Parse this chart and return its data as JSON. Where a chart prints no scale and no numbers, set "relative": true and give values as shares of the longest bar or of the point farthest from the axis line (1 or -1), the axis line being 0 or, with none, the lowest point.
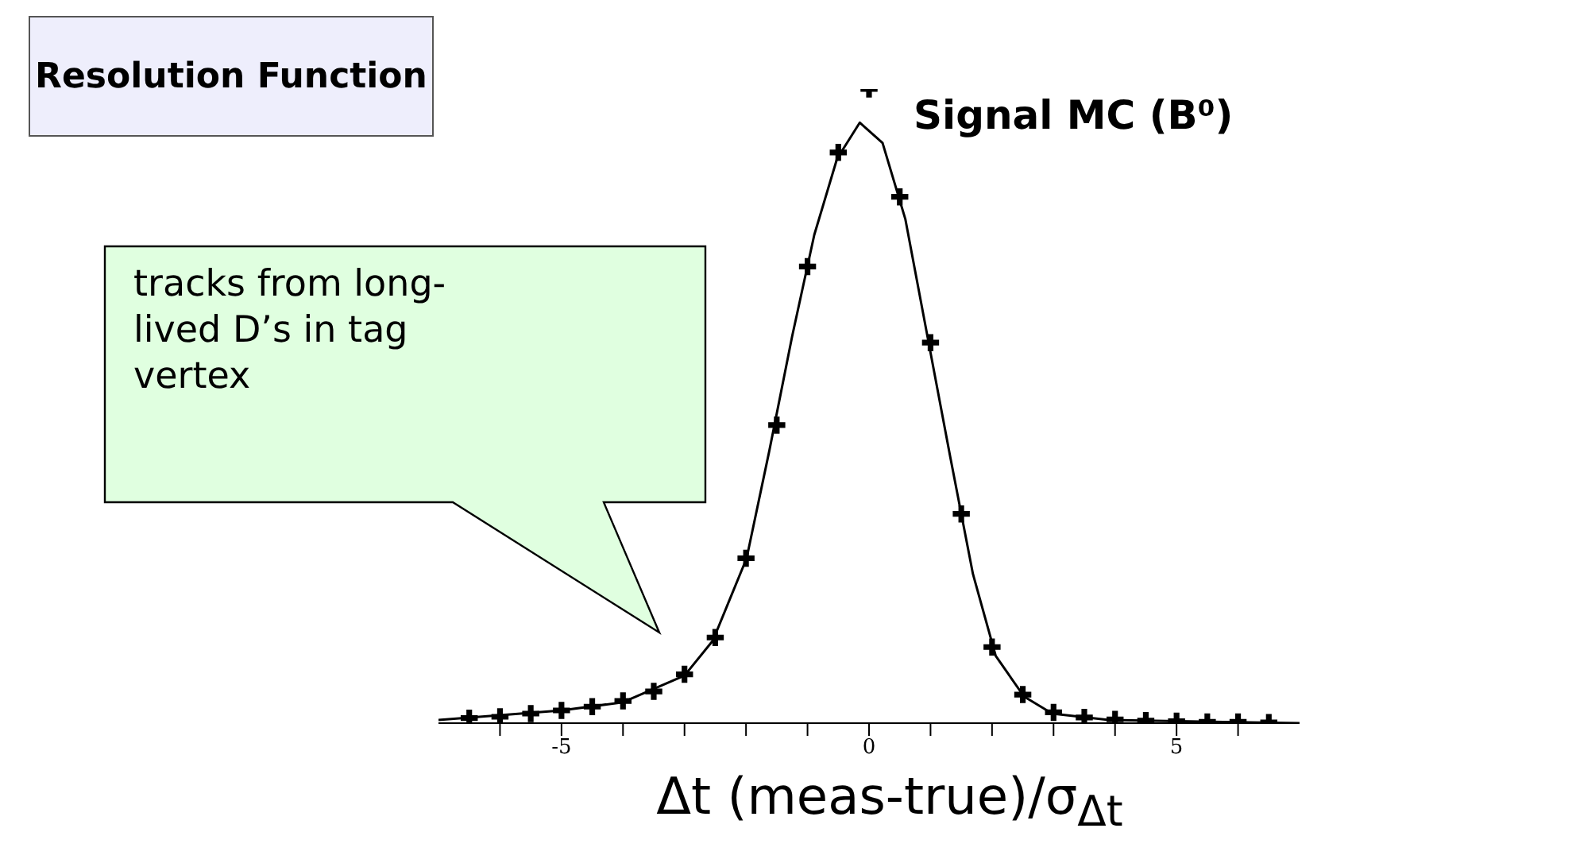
{
  "chart_data": {
    "type": "line",
    "title": "Resolution Function",
    "subtitle": "Signal MC (B⁰)",
    "xlabel": "Δt (meas-true)/σ$_{Δt}$",
    "relative": true,
    "xlim": [
      -7,
      7
    ],
    "xticks": [
      {
        "value": -6,
        "label": null
      },
      -5,
      {
        "value": -4,
        "label": null
      },
      {
        "value": -3,
        "label": null
      },
      {
        "value": -2,
        "label": null
      },
      {
        "value": -1,
        "label": null
      },
      0,
      {
        "value": 1,
        "label": null
      },
      {
        "value": 2,
        "label": null
      },
      {
        "value": 3,
        "label": null
      },
      {
        "value": 4,
        "label": null
      },
      5,
      {
        "value": 6,
        "label": null
      }
    ],
    "annotations": [
      "tracks from long-lived D’s in tag vertex"
    ],
    "series": [
      {
        "type": "scatter",
        "color": "#000000",
        "marker": "cross",
        "x": [
          -6.5,
          -6,
          -5.5,
          -5,
          -4.5,
          -4,
          -3.5,
          -3,
          -2.5,
          -2,
          -1.5,
          -1,
          -0.5,
          0,
          0.5,
          1,
          1.5,
          2,
          2.5,
          3,
          3.5,
          4,
          4.5,
          5,
          5.5,
          6,
          6.5
        ],
        "values": [
          0.008,
          0.01,
          0.015,
          0.02,
          0.026,
          0.035,
          0.05,
          0.077,
          0.135,
          0.26,
          0.47,
          0.72,
          0.9,
          1,
          0.83,
          0.6,
          0.33,
          0.12,
          0.045,
          0.017,
          0.009,
          0.006,
          0.004,
          0.003,
          0.002,
          0.002,
          0.001
        ]
      },
      {
        "color": "#000000",
        "marker": "none",
        "line_style": "solid",
        "x": [
          -7,
          -5,
          -4,
          -3,
          -2.54,
          -1.99,
          -1.62,
          -1.25,
          -0.89,
          -0.52,
          -0.15,
          0.22,
          0.59,
          0.95,
          1.32,
          1.69,
          2.06,
          2.52,
          2.98,
          3.9,
          7
        ],
        "values": [
          0.005,
          0.02,
          0.033,
          0.075,
          0.13,
          0.26,
          0.43,
          0.61,
          0.77,
          0.89,
          0.947,
          0.915,
          0.795,
          0.61,
          0.42,
          0.235,
          0.106,
          0.042,
          0.015,
          0.005,
          0
        ]
      }
    ]
  }
}
